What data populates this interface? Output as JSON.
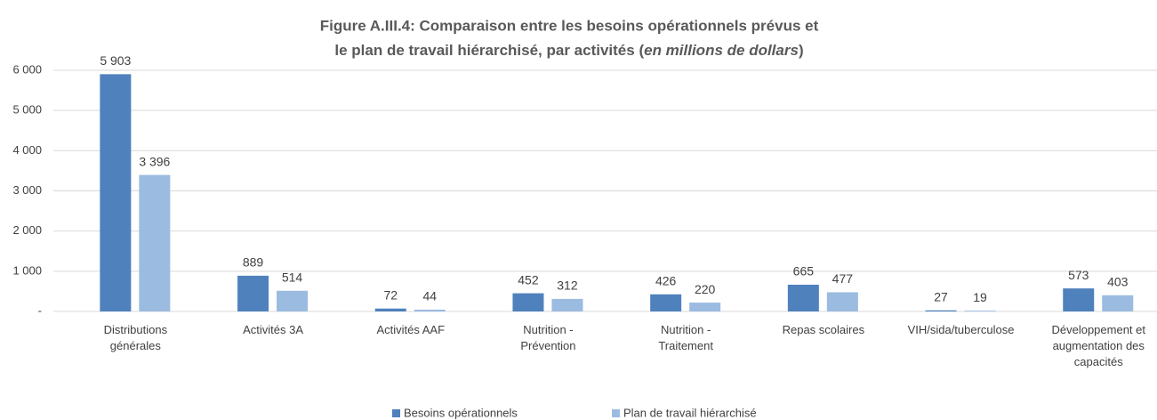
{
  "chart_data": {
    "type": "bar",
    "title": [
      "Figure A.III.4: Comparaison entre les besoins opérationnels prévus et",
      "le plan de travail hiérarchisé, par activités (",
      "en millions de dollars",
      ")"
    ],
    "categories": [
      [
        "Distributions",
        "générales"
      ],
      [
        "Activités 3A"
      ],
      [
        "Activités AAF"
      ],
      [
        "Nutrition -",
        "Prévention"
      ],
      [
        "Nutrition -",
        "Traitement"
      ],
      [
        "Repas scolaires"
      ],
      [
        "VIH/sida/tuberculose"
      ],
      [
        "Développement et",
        "augmentation des",
        "capacités"
      ]
    ],
    "series": [
      {
        "name": "Besoins opérationnels",
        "color": "#4f81bd",
        "values": [
          5903,
          889,
          72,
          452,
          426,
          665,
          27,
          573
        ],
        "value_labels": [
          "5 903",
          "889",
          "72",
          "452",
          "426",
          "665",
          "27",
          "573"
        ]
      },
      {
        "name": "Plan de travail hiérarchisé",
        "color": "#9bbbe0",
        "values": [
          3396,
          514,
          44,
          312,
          220,
          477,
          19,
          403
        ],
        "value_labels": [
          "3 396",
          "514",
          "44",
          "312",
          "220",
          "477",
          "19",
          "403"
        ]
      }
    ],
    "ylim": [
      0,
      6000
    ],
    "yticks": [
      {
        "value": 0,
        "label": "-"
      },
      {
        "value": 1000,
        "label": "1 000"
      },
      {
        "value": 2000,
        "label": "2 000"
      },
      {
        "value": 3000,
        "label": "3 000"
      },
      {
        "value": 4000,
        "label": "4 000"
      },
      {
        "value": 5000,
        "label": "5 000"
      },
      {
        "value": 6000,
        "label": "6 000"
      }
    ],
    "grid": true,
    "legend": "bottom"
  }
}
